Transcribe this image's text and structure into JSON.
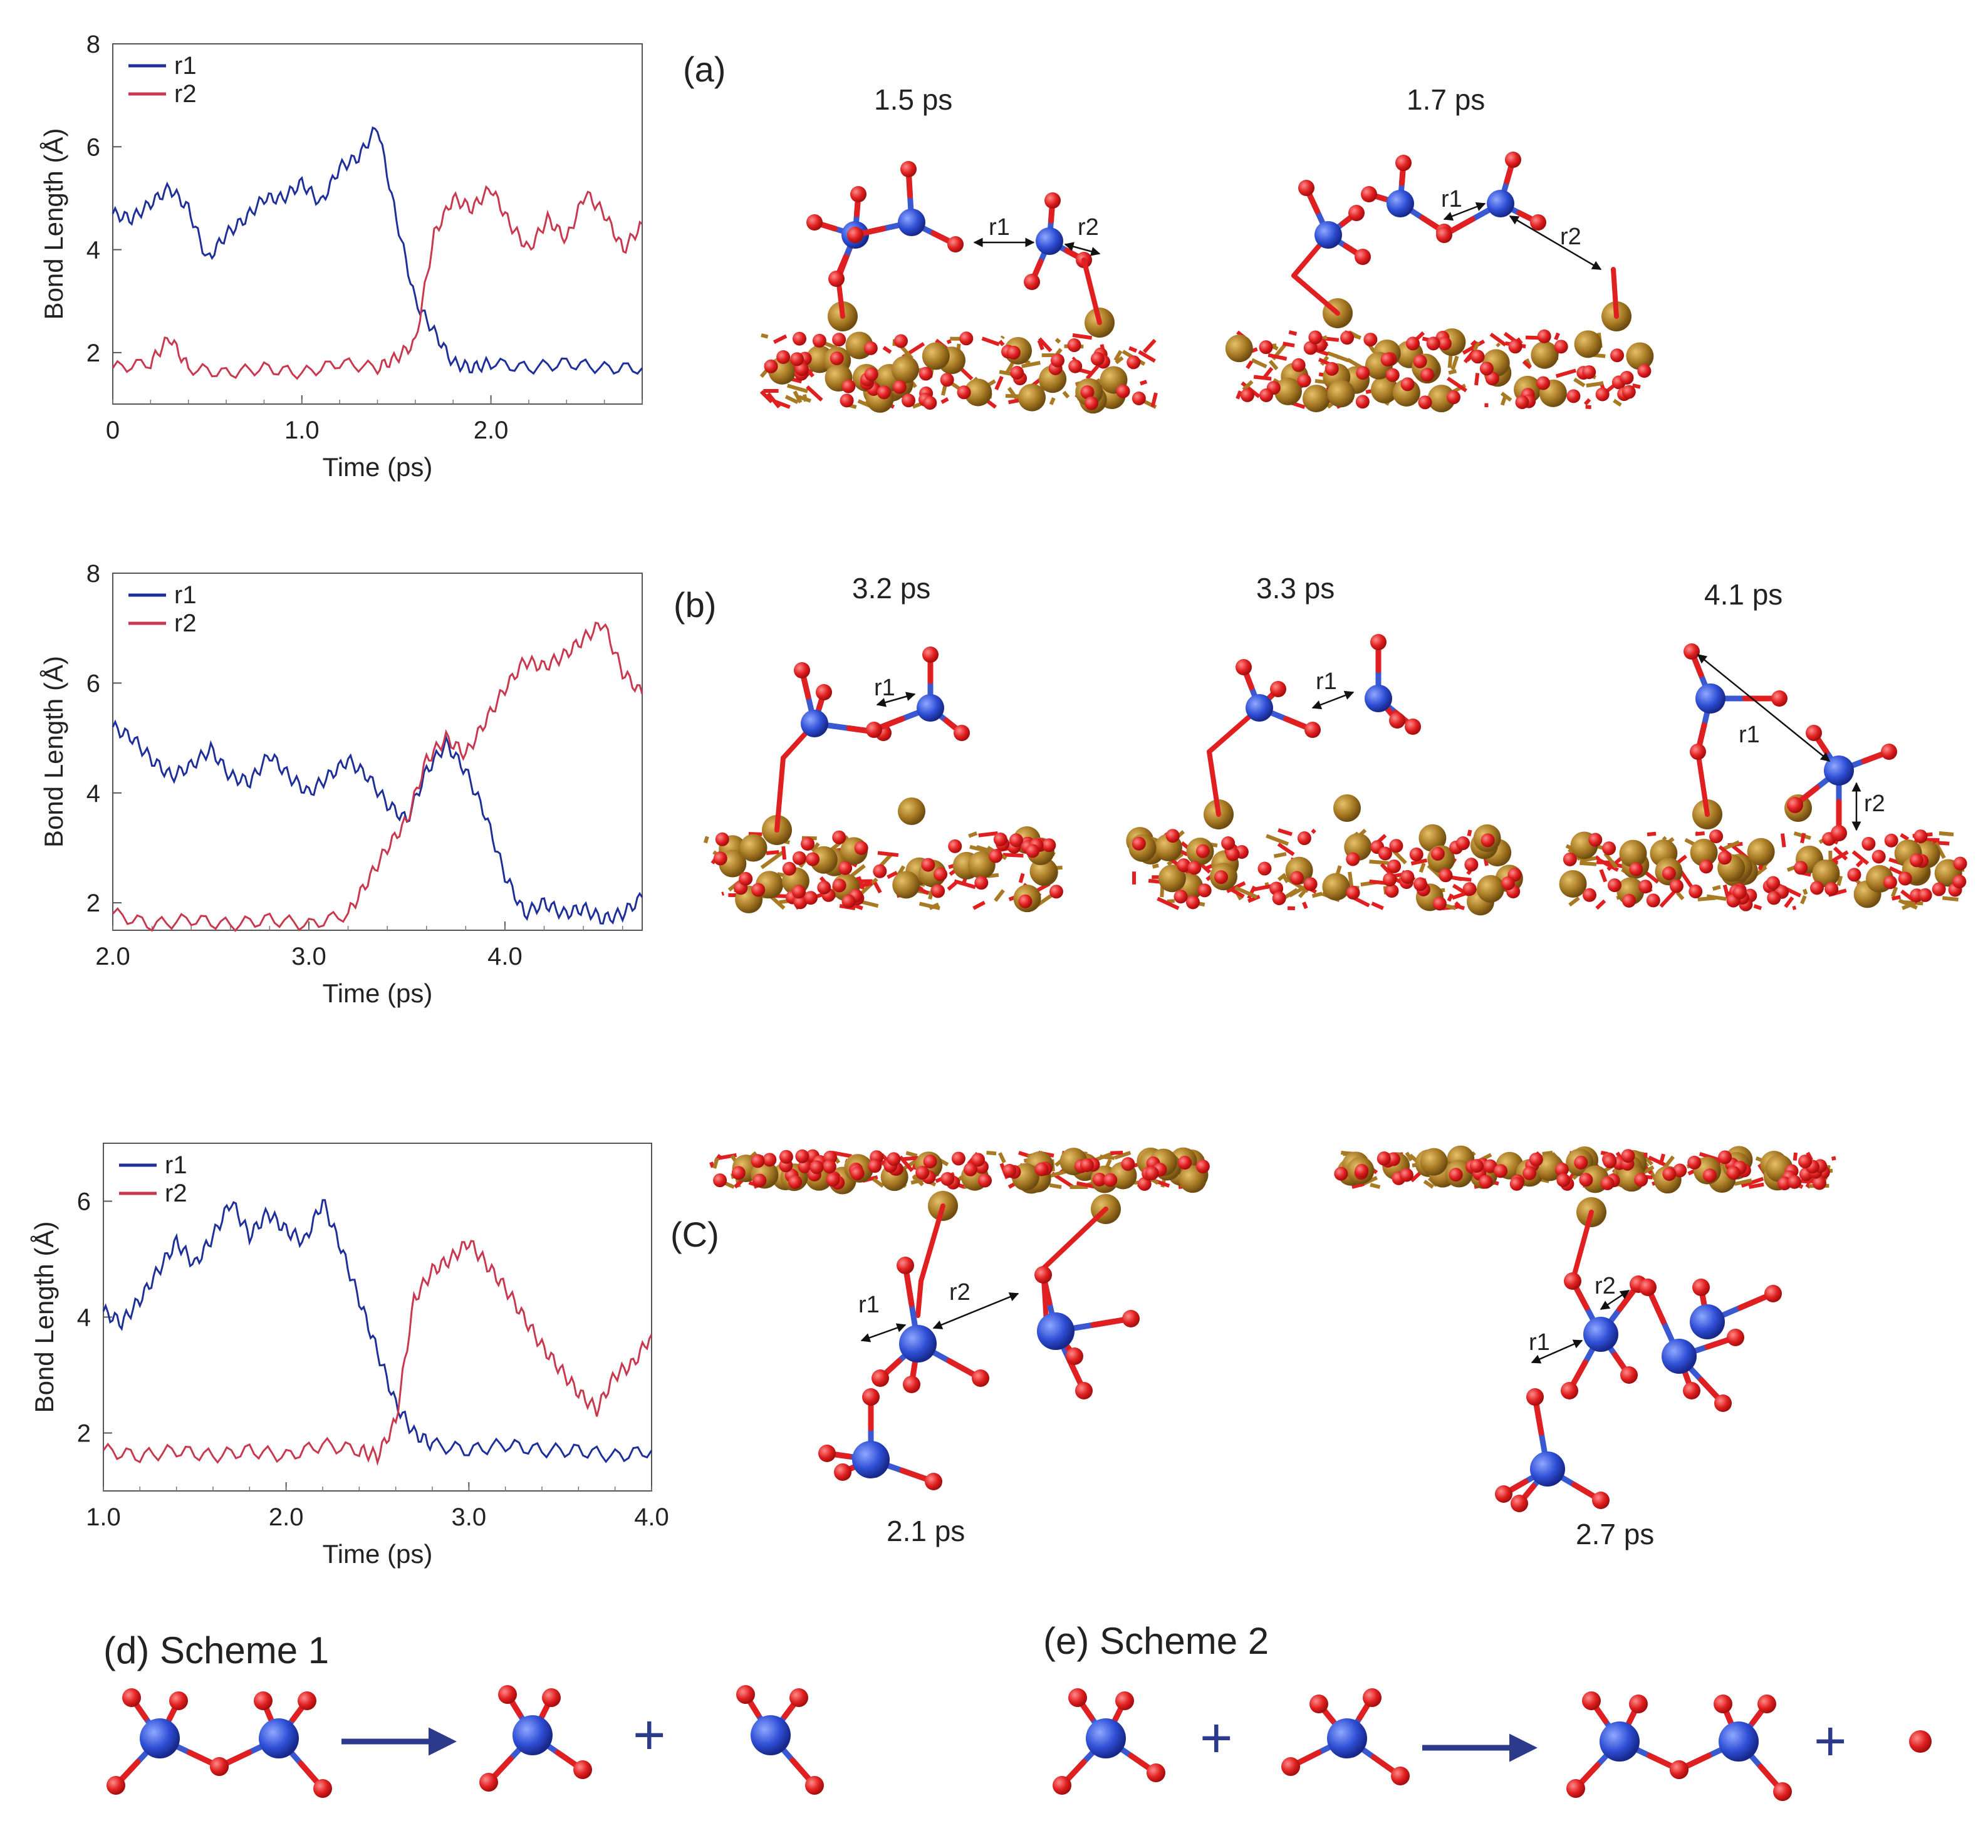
{
  "panels": {
    "a": {
      "label": "(a)",
      "times": [
        "1.5 ps",
        "1.7 ps"
      ]
    },
    "b": {
      "label": "(b)",
      "times": [
        "3.2 ps",
        "3.3 ps",
        "4.1 ps"
      ]
    },
    "c": {
      "label": "(C)",
      "times": [
        "2.1 ps",
        "2.7 ps"
      ]
    }
  },
  "bond_labels": {
    "r1": "r1",
    "r2": "r2"
  },
  "schemes": {
    "d": "(d) Scheme 1",
    "e": "(e) Scheme 2",
    "plus": "+"
  },
  "colors": {
    "r1": "#1f2f9a",
    "r2": "#c8384e",
    "S": "#2f4fd6",
    "O": "#e02020",
    "surface_metal": "#a87a24",
    "arrow": "#2b3a8a"
  },
  "chart_data": [
    {
      "type": "line",
      "xlabel": "Time (ps)",
      "ylabel": "Bond Length (Å)",
      "xlim": [
        0,
        2.8
      ],
      "ylim": [
        1,
        8
      ],
      "xticks": [
        0,
        1.0,
        2.0
      ],
      "xtick_labels": [
        "0",
        "1.0",
        "2.0"
      ],
      "yticks": [
        2,
        4,
        6,
        8
      ],
      "ytick_labels": [
        "2",
        "4",
        "6",
        "8"
      ],
      "legend": "top-left",
      "series": [
        {
          "name": "r1",
          "x": [
            0,
            0.1,
            0.2,
            0.3,
            0.4,
            0.5,
            0.6,
            0.7,
            0.8,
            0.9,
            1.0,
            1.1,
            1.2,
            1.3,
            1.4,
            1.5,
            1.6,
            1.7,
            1.8,
            1.9,
            2.0,
            2.2,
            2.4,
            2.6,
            2.8
          ],
          "y": [
            4.7,
            4.6,
            4.9,
            5.2,
            4.8,
            3.8,
            4.3,
            4.6,
            5.0,
            5.0,
            5.3,
            4.9,
            5.6,
            5.8,
            6.4,
            4.6,
            3.0,
            2.4,
            1.8,
            1.7,
            1.8,
            1.7,
            1.8,
            1.7,
            1.7
          ]
        },
        {
          "name": "r2",
          "x": [
            0,
            0.2,
            0.3,
            0.4,
            0.6,
            0.8,
            1.0,
            1.2,
            1.4,
            1.5,
            1.6,
            1.7,
            1.8,
            1.9,
            2.0,
            2.1,
            2.2,
            2.3,
            2.4,
            2.5,
            2.6,
            2.7,
            2.8
          ],
          "y": [
            1.7,
            1.8,
            2.3,
            1.7,
            1.6,
            1.7,
            1.6,
            1.8,
            1.7,
            1.9,
            2.2,
            4.3,
            5.0,
            4.8,
            5.2,
            4.5,
            4.0,
            4.6,
            4.2,
            5.1,
            4.7,
            4.0,
            4.5
          ]
        }
      ]
    },
    {
      "type": "line",
      "xlabel": "Time (ps)",
      "ylabel": "Bond Length (Å)",
      "xlim": [
        2.0,
        4.7
      ],
      "ylim": [
        1.5,
        8
      ],
      "xticks": [
        2.0,
        3.0,
        4.0
      ],
      "xtick_labels": [
        "2.0",
        "3.0",
        "4.0"
      ],
      "yticks": [
        2,
        4,
        6,
        8
      ],
      "ytick_labels": [
        "2",
        "4",
        "6",
        "8"
      ],
      "legend": "top-left",
      "series": [
        {
          "name": "r1",
          "x": [
            2.0,
            2.1,
            2.2,
            2.3,
            2.4,
            2.5,
            2.6,
            2.7,
            2.8,
            2.9,
            3.0,
            3.1,
            3.2,
            3.3,
            3.4,
            3.5,
            3.6,
            3.7,
            3.8,
            3.9,
            4.0,
            4.1,
            4.2,
            4.3,
            4.4,
            4.5,
            4.6,
            4.7
          ],
          "y": [
            5.2,
            5.0,
            4.6,
            4.3,
            4.5,
            4.8,
            4.3,
            4.2,
            4.7,
            4.3,
            4.0,
            4.3,
            4.6,
            4.3,
            3.8,
            3.5,
            4.4,
            4.9,
            4.4,
            3.6,
            2.5,
            1.8,
            2.0,
            1.8,
            1.9,
            1.7,
            1.8,
            2.1
          ]
        },
        {
          "name": "r2",
          "x": [
            2.0,
            2.2,
            2.4,
            2.6,
            2.8,
            3.0,
            3.2,
            3.3,
            3.4,
            3.5,
            3.6,
            3.7,
            3.8,
            3.9,
            4.0,
            4.1,
            4.2,
            4.3,
            4.4,
            4.5,
            4.6,
            4.7
          ],
          "y": [
            1.8,
            1.6,
            1.7,
            1.6,
            1.7,
            1.6,
            1.8,
            2.4,
            3.0,
            3.5,
            4.6,
            5.0,
            4.7,
            5.3,
            5.9,
            6.4,
            6.3,
            6.5,
            6.8,
            7.1,
            6.2,
            5.8
          ]
        }
      ]
    },
    {
      "type": "line",
      "xlabel": "Time (ps)",
      "ylabel": "Bond Length (Å)",
      "xlim": [
        1.0,
        4.0
      ],
      "ylim": [
        1,
        7
      ],
      "xticks": [
        1.0,
        2.0,
        3.0,
        4.0
      ],
      "xtick_labels": [
        "1.0",
        "2.0",
        "3.0",
        "4.0"
      ],
      "yticks": [
        2,
        4,
        6
      ],
      "ytick_labels": [
        "2",
        "4",
        "6"
      ],
      "legend": "top-left",
      "series": [
        {
          "name": "r1",
          "x": [
            1.0,
            1.1,
            1.2,
            1.3,
            1.4,
            1.5,
            1.6,
            1.7,
            1.8,
            1.9,
            2.0,
            2.1,
            2.2,
            2.3,
            2.4,
            2.5,
            2.6,
            2.7,
            2.8,
            3.0,
            3.2,
            3.4,
            3.6,
            3.8,
            4.0
          ],
          "y": [
            4.1,
            3.9,
            4.3,
            4.8,
            5.3,
            4.9,
            5.4,
            6.0,
            5.4,
            5.8,
            5.5,
            5.3,
            6.0,
            5.2,
            4.3,
            3.4,
            2.5,
            2.0,
            1.8,
            1.7,
            1.8,
            1.7,
            1.7,
            1.6,
            1.7
          ]
        },
        {
          "name": "r2",
          "x": [
            1.0,
            1.2,
            1.4,
            1.6,
            1.8,
            2.0,
            2.2,
            2.4,
            2.5,
            2.6,
            2.7,
            2.8,
            2.9,
            3.0,
            3.1,
            3.2,
            3.3,
            3.4,
            3.5,
            3.6,
            3.7,
            3.8,
            3.9,
            4.0
          ],
          "y": [
            1.7,
            1.6,
            1.7,
            1.6,
            1.7,
            1.6,
            1.8,
            1.7,
            1.6,
            2.2,
            4.3,
            4.8,
            5.0,
            5.3,
            4.9,
            4.5,
            4.0,
            3.5,
            3.1,
            2.7,
            2.4,
            3.0,
            3.2,
            3.7
          ]
        }
      ]
    }
  ]
}
